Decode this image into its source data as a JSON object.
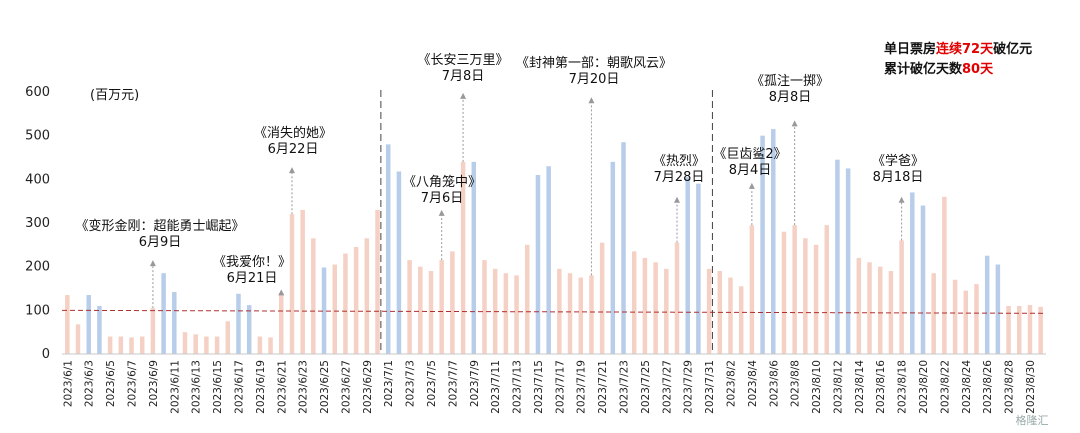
{
  "chart_data": {
    "type": "bar",
    "title": "",
    "ylabel": "(百万元)",
    "xlabel": "",
    "ylim": [
      0,
      600
    ],
    "yticks": [
      0,
      100,
      200,
      300,
      400,
      500,
      600
    ],
    "reference_line": 100,
    "colors": {
      "highlight": "#b7cde9",
      "normal": "#f5d0c4",
      "ref_line": "#b03030"
    },
    "categories": [
      "2023/6/1",
      "2023/6/2",
      "2023/6/3",
      "2023/6/4",
      "2023/6/5",
      "2023/6/6",
      "2023/6/7",
      "2023/6/8",
      "2023/6/9",
      "2023/6/10",
      "2023/6/11",
      "2023/6/12",
      "2023/6/13",
      "2023/6/14",
      "2023/6/15",
      "2023/6/16",
      "2023/6/17",
      "2023/6/18",
      "2023/6/19",
      "2023/6/20",
      "2023/6/21",
      "2023/6/22",
      "2023/6/23",
      "2023/6/24",
      "2023/6/25",
      "2023/6/26",
      "2023/6/27",
      "2023/6/28",
      "2023/6/29",
      "2023/6/30",
      "2023/7/1",
      "2023/7/2",
      "2023/7/3",
      "2023/7/4",
      "2023/7/5",
      "2023/7/6",
      "2023/7/7",
      "2023/7/8",
      "2023/7/9",
      "2023/7/10",
      "2023/7/11",
      "2023/7/12",
      "2023/7/13",
      "2023/7/14",
      "2023/7/15",
      "2023/7/16",
      "2023/7/17",
      "2023/7/18",
      "2023/7/19",
      "2023/7/20",
      "2023/7/21",
      "2023/7/22",
      "2023/7/23",
      "2023/7/24",
      "2023/7/25",
      "2023/7/26",
      "2023/7/27",
      "2023/7/28",
      "2023/7/29",
      "2023/7/30",
      "2023/7/31",
      "2023/8/1",
      "2023/8/2",
      "2023/8/3",
      "2023/8/4",
      "2023/8/5",
      "2023/8/6",
      "2023/8/7",
      "2023/8/8",
      "2023/8/9",
      "2023/8/10",
      "2023/8/11",
      "2023/8/12",
      "2023/8/13",
      "2023/8/14",
      "2023/8/15",
      "2023/8/16",
      "2023/8/17",
      "2023/8/18",
      "2023/8/19",
      "2023/8/20",
      "2023/8/21",
      "2023/8/22",
      "2023/8/23",
      "2023/8/24",
      "2023/8/25",
      "2023/8/26",
      "2023/8/27",
      "2023/8/28",
      "2023/8/29",
      "2023/8/30",
      "2023/8/31"
    ],
    "values": [
      135,
      68,
      135,
      110,
      40,
      40,
      38,
      40,
      105,
      185,
      142,
      50,
      45,
      40,
      40,
      75,
      138,
      112,
      40,
      38,
      140,
      320,
      330,
      265,
      198,
      205,
      230,
      245,
      265,
      330,
      480,
      418,
      215,
      200,
      190,
      215,
      235,
      440,
      440,
      215,
      195,
      185,
      180,
      250,
      410,
      430,
      195,
      185,
      175,
      180,
      255,
      440,
      485,
      235,
      220,
      210,
      195,
      255,
      405,
      390,
      195,
      190,
      175,
      155,
      295,
      500,
      515,
      280,
      295,
      265,
      250,
      295,
      445,
      425,
      220,
      210,
      200,
      190,
      260,
      370,
      340,
      185,
      360,
      170,
      145,
      160,
      225,
      205,
      110,
      110,
      112,
      108
    ],
    "highlight_indices": [
      2,
      3,
      9,
      10,
      16,
      17,
      24,
      30,
      31,
      38,
      44,
      45,
      51,
      52,
      58,
      59,
      65,
      66,
      72,
      73,
      79,
      80,
      86,
      87
    ],
    "xtick_labels": [
      "2023/6/1",
      "2023/6/3",
      "2023/6/5",
      "2023/6/7",
      "2023/6/9",
      "2023/6/11",
      "2023/6/13",
      "2023/6/15",
      "2023/6/17",
      "2023/6/19",
      "2023/6/21",
      "2023/6/23",
      "2023/6/25",
      "2023/6/27",
      "2023/6/29",
      "2023/7/1",
      "2023/7/3",
      "2023/7/5",
      "2023/7/7",
      "2023/7/9",
      "2023/7/11",
      "2023/7/13",
      "2023/7/15",
      "2023/7/17",
      "2023/7/19",
      "2023/7/21",
      "2023/7/23",
      "2023/7/25",
      "2023/7/27",
      "2023/7/29",
      "2023/7/31",
      "2023/8/2",
      "2023/8/4",
      "2023/8/6",
      "2023/8/8",
      "2023/8/10",
      "2023/8/12",
      "2023/8/14",
      "2023/8/16",
      "2023/8/18",
      "2023/8/20",
      "2023/8/22",
      "2023/8/24",
      "2023/8/26",
      "2023/8/28",
      "2023/8/30"
    ],
    "month_dividers": [
      "2023/7/1",
      "2023/8/1"
    ],
    "annotations": [
      {
        "title": "《变形金刚：超能勇士崛起》",
        "date": "6月9日",
        "index": 8,
        "value": 215
      },
      {
        "title": "《我爱你！》",
        "date": "6月21日",
        "index": 20,
        "value": 148
      },
      {
        "title": "《消失的她》",
        "date": "6月22日",
        "index": 21,
        "value": 428
      },
      {
        "title": "《长安三万里》",
        "date": "7月8日",
        "index": 37,
        "value": 598
      },
      {
        "title": "《八角笼中》",
        "date": "7月6日",
        "index": 35,
        "value": 330
      },
      {
        "title": "《封神第一部：朝歌风云》",
        "date": "7月20日",
        "index": 49,
        "value": 588
      },
      {
        "title": "《热烈》",
        "date": "7月28日",
        "index": 57,
        "value": 360
      },
      {
        "title": "《巨齿鲨2》",
        "date": "8月4日",
        "index": 64,
        "value": 392
      },
      {
        "title": "《孤注一掷》",
        "date": "8月8日",
        "index": 68,
        "value": 535
      },
      {
        "title": "《学爸》",
        "date": "8月18日",
        "index": 78,
        "value": 360
      }
    ],
    "summary": [
      {
        "prefix": "单日票房",
        "highlight": "连续72天",
        "suffix": "破亿元"
      },
      {
        "prefix": "累计破亿天数",
        "highlight": "80天",
        "suffix": ""
      }
    ]
  },
  "unit_label": "(百万元)",
  "watermark": "格隆汇"
}
